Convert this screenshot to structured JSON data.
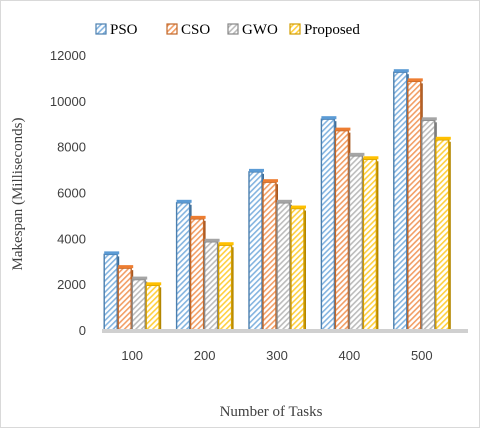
{
  "chart_data": {
    "type": "bar",
    "title": "",
    "xlabel": "Number of Tasks",
    "ylabel": "Makespan (Milliseconds)",
    "categories": [
      "100",
      "200",
      "300",
      "400",
      "500"
    ],
    "ylim": [
      0,
      12000
    ],
    "yticks": [
      "0",
      "2000",
      "4000",
      "6000",
      "8000",
      "10000",
      "12000"
    ],
    "grid": false,
    "legend_position": "top",
    "series": [
      {
        "name": "PSO",
        "values": [
          3300,
          5550,
          6900,
          9200,
          11250
        ],
        "color": "#5b9bd5"
      },
      {
        "name": "CSO",
        "values": [
          2700,
          4850,
          6450,
          8700,
          10850
        ],
        "color": "#ed7d31"
      },
      {
        "name": "GWO",
        "values": [
          2200,
          3850,
          5550,
          7600,
          9150
        ],
        "color": "#a5a5a5"
      },
      {
        "name": "Proposed",
        "values": [
          1950,
          3700,
          5300,
          7450,
          8300
        ],
        "color": "#ffc000"
      }
    ]
  }
}
